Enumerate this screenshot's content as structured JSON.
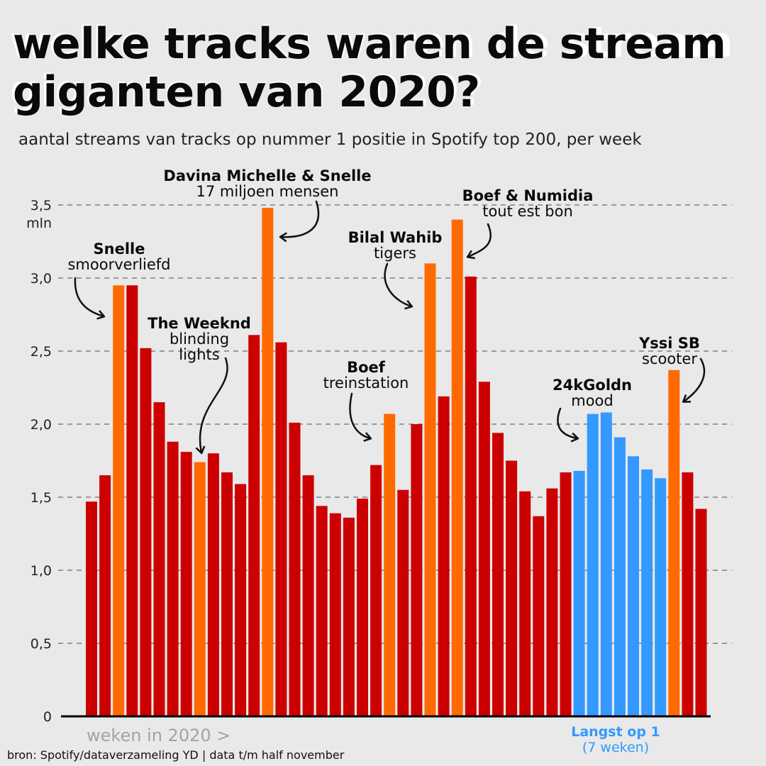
{
  "title": [
    "welke tracks waren de stream",
    "giganten van 2020?"
  ],
  "subtitle": "aantal streams van tracks op nummer 1 positie in Spotify top 200, per week",
  "source": "bron: Spotify/dataverzameling YD | data t/m half november",
  "colors": {
    "default": "#cc0000",
    "highlight": "#ff6a00",
    "longest": "#3399ff",
    "axis": "#000000",
    "grid": "#9a9a9a",
    "background": "#e9e9e9"
  },
  "chart_data": {
    "type": "bar",
    "title": "welke tracks waren de stream giganten van 2020?",
    "xlabel": "weken in 2020 >",
    "ylabel": "mln",
    "ylim": [
      0,
      3.5
    ],
    "yticks": [
      {
        "value": 0,
        "label": "0"
      },
      {
        "value": 0.5,
        "label": "0,5"
      },
      {
        "value": 1.0,
        "label": "1,0"
      },
      {
        "value": 1.5,
        "label": "1,5"
      },
      {
        "value": 2.0,
        "label": "2,0"
      },
      {
        "value": 2.5,
        "label": "2,5"
      },
      {
        "value": 3.0,
        "label": "3,0"
      },
      {
        "value": 3.5,
        "label": "3,5"
      }
    ],
    "values": [
      1.47,
      1.65,
      2.95,
      2.95,
      2.52,
      2.15,
      1.88,
      1.81,
      1.74,
      1.8,
      1.67,
      1.59,
      2.61,
      3.48,
      2.56,
      2.01,
      1.65,
      1.44,
      1.39,
      1.36,
      1.49,
      1.72,
      2.07,
      1.55,
      2.0,
      3.1,
      2.19,
      3.4,
      3.01,
      2.29,
      1.94,
      1.75,
      1.54,
      1.37,
      1.56,
      1.67,
      1.68,
      2.07,
      2.08,
      1.91,
      1.78,
      1.69,
      1.63,
      2.37,
      1.67,
      1.42
    ],
    "categories_kind": [
      "default",
      "default",
      "highlight",
      "default",
      "default",
      "default",
      "default",
      "default",
      "highlight",
      "default",
      "default",
      "default",
      "default",
      "highlight",
      "default",
      "default",
      "default",
      "default",
      "default",
      "default",
      "default",
      "default",
      "highlight",
      "default",
      "default",
      "highlight",
      "default",
      "highlight",
      "default",
      "default",
      "default",
      "default",
      "default",
      "default",
      "default",
      "default",
      "longest",
      "longest",
      "longest",
      "longest",
      "longest",
      "longest",
      "longest",
      "highlight",
      "default",
      "default"
    ],
    "annotations": [
      {
        "bar": 2,
        "artist": "Snelle",
        "track": "smoorverliefd"
      },
      {
        "bar": 8,
        "artist": "The Weeknd",
        "track": "blinding lights"
      },
      {
        "bar": 13,
        "artist": "Davina Michelle & Snelle",
        "track": "17 miljoen mensen"
      },
      {
        "bar": 22,
        "artist": "Boef",
        "track": "treinstation"
      },
      {
        "bar": 25,
        "artist": "Bilal Wahib",
        "track": "tigers"
      },
      {
        "bar": 27,
        "artist": "Boef & Numidia",
        "track": "tout est bon"
      },
      {
        "bar": 36,
        "artist": "24kGoldn",
        "track": "mood"
      },
      {
        "bar": 43,
        "artist": "Yssi SB",
        "track": "scooter"
      }
    ],
    "longest_label": [
      "Langst op 1",
      "(7 weken)"
    ]
  }
}
